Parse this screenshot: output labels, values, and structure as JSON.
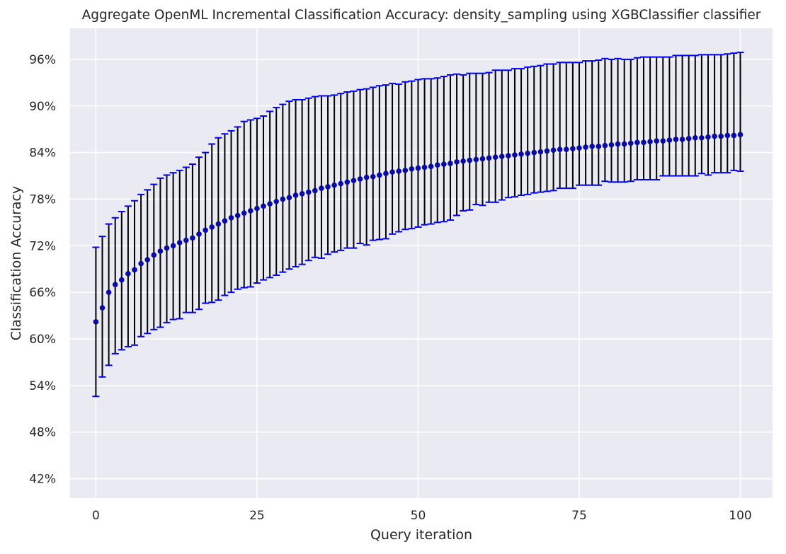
{
  "chart_data": {
    "type": "scatter",
    "title": "Aggregate OpenML Incremental Classification Accuracy: density_sampling using XGBClassifier classifier",
    "xlabel": "Query iteration",
    "ylabel": "Classification Accuracy",
    "xlim": [
      -4,
      105
    ],
    "ylim": [
      39.5,
      100
    ],
    "x_ticks": [
      0,
      25,
      50,
      75,
      100
    ],
    "x_tick_labels": [
      "0",
      "25",
      "50",
      "75",
      "100"
    ],
    "y_ticks": [
      42,
      48,
      54,
      60,
      66,
      72,
      78,
      84,
      90,
      96
    ],
    "y_tick_labels": [
      "42%",
      "48%",
      "54%",
      "60%",
      "66%",
      "72%",
      "78%",
      "84%",
      "90%",
      "96%"
    ],
    "grid": true,
    "colors": {
      "background": "#eaeaf2",
      "grid": "#ffffff",
      "point": "#0a0aa5",
      "errorbar": "#000000",
      "cap": "#0000ff",
      "text": "#262626"
    },
    "series": [
      {
        "x": [
          0,
          1,
          2,
          3,
          4,
          5,
          6,
          7,
          8,
          9,
          10,
          11,
          12,
          13,
          14,
          15,
          16,
          17,
          18,
          19,
          20,
          21,
          22,
          23,
          24,
          25,
          26,
          27,
          28,
          29,
          30,
          31,
          32,
          33,
          34,
          35,
          36,
          37,
          38,
          39,
          40,
          41,
          42,
          43,
          44,
          45,
          46,
          47,
          48,
          49,
          50,
          51,
          52,
          53,
          54,
          55,
          56,
          57,
          58,
          59,
          60,
          61,
          62,
          63,
          64,
          65,
          66,
          67,
          68,
          69,
          70,
          71,
          72,
          73,
          74,
          75,
          76,
          77,
          78,
          79,
          80,
          81,
          82,
          83,
          84,
          85,
          86,
          87,
          88,
          89,
          90,
          91,
          92,
          93,
          94,
          95,
          96,
          97,
          98,
          99,
          100
        ],
        "y": [
          62.2,
          64.0,
          66.0,
          67.0,
          67.6,
          68.4,
          68.9,
          69.7,
          70.2,
          70.8,
          71.3,
          71.7,
          72.0,
          72.4,
          72.7,
          73.0,
          73.5,
          74.0,
          74.4,
          74.8,
          75.2,
          75.6,
          75.9,
          76.2,
          76.5,
          76.8,
          77.1,
          77.4,
          77.7,
          78.0,
          78.2,
          78.5,
          78.7,
          78.9,
          79.1,
          79.4,
          79.6,
          79.8,
          80.0,
          80.2,
          80.4,
          80.6,
          80.8,
          80.9,
          81.1,
          81.3,
          81.5,
          81.6,
          81.7,
          81.9,
          82.0,
          82.1,
          82.2,
          82.4,
          82.5,
          82.6,
          82.8,
          82.9,
          83.0,
          83.1,
          83.2,
          83.3,
          83.4,
          83.5,
          83.6,
          83.7,
          83.8,
          83.9,
          84.0,
          84.1,
          84.2,
          84.3,
          84.4,
          84.4,
          84.5,
          84.6,
          84.7,
          84.8,
          84.8,
          84.9,
          85.0,
          85.1,
          85.1,
          85.2,
          85.3,
          85.3,
          85.4,
          85.5,
          85.5,
          85.6,
          85.7,
          85.7,
          85.8,
          85.9,
          85.9,
          86.0,
          86.1,
          86.1,
          86.2,
          86.2,
          86.3
        ],
        "y_lower": [
          52.6,
          55.1,
          56.6,
          58.1,
          58.6,
          59.0,
          59.2,
          60.3,
          60.7,
          61.2,
          61.5,
          62.1,
          62.5,
          62.6,
          63.4,
          63.4,
          63.8,
          64.6,
          64.7,
          65.0,
          65.6,
          66.0,
          66.4,
          66.6,
          66.7,
          67.2,
          67.6,
          67.9,
          68.2,
          68.6,
          69.0,
          69.3,
          69.6,
          70.1,
          70.5,
          70.4,
          70.9,
          71.2,
          71.4,
          71.7,
          71.7,
          72.3,
          72.1,
          72.7,
          72.8,
          72.9,
          73.5,
          73.8,
          74.1,
          74.2,
          74.4,
          74.7,
          74.8,
          75.0,
          75.1,
          75.3,
          75.9,
          76.5,
          76.6,
          77.3,
          77.2,
          77.6,
          77.6,
          77.9,
          78.2,
          78.3,
          78.5,
          78.6,
          78.8,
          78.9,
          79.0,
          79.1,
          79.4,
          79.4,
          79.4,
          79.8,
          79.8,
          79.8,
          79.8,
          80.3,
          80.2,
          80.2,
          80.2,
          80.3,
          80.5,
          80.5,
          80.5,
          80.5,
          81.0,
          81.0,
          81.0,
          81.0,
          81.0,
          81.0,
          81.3,
          81.1,
          81.4,
          81.4,
          81.4,
          81.7,
          81.6
        ],
        "y_upper": [
          71.8,
          73.2,
          74.8,
          75.6,
          76.4,
          77.1,
          77.8,
          78.6,
          79.2,
          79.9,
          80.7,
          81.1,
          81.4,
          81.7,
          82.1,
          82.5,
          83.4,
          84.0,
          85.1,
          85.9,
          86.4,
          86.8,
          87.3,
          88.0,
          88.2,
          88.4,
          88.7,
          89.3,
          89.8,
          90.2,
          90.6,
          90.8,
          90.8,
          91.0,
          91.2,
          91.3,
          91.3,
          91.4,
          91.6,
          91.8,
          91.9,
          92.1,
          92.2,
          92.4,
          92.6,
          92.7,
          92.9,
          92.8,
          93.1,
          93.2,
          93.4,
          93.5,
          93.5,
          93.6,
          93.8,
          94.0,
          94.1,
          94.0,
          94.2,
          94.2,
          94.2,
          94.3,
          94.6,
          94.6,
          94.6,
          94.8,
          94.8,
          95.0,
          95.1,
          95.2,
          95.4,
          95.4,
          95.6,
          95.6,
          95.6,
          95.6,
          95.8,
          95.8,
          95.9,
          96.1,
          96.0,
          96.1,
          96.0,
          96.0,
          96.2,
          96.3,
          96.3,
          96.3,
          96.3,
          96.3,
          96.5,
          96.5,
          96.5,
          96.5,
          96.6,
          96.6,
          96.6,
          96.6,
          96.7,
          96.8,
          96.9
        ]
      }
    ]
  }
}
